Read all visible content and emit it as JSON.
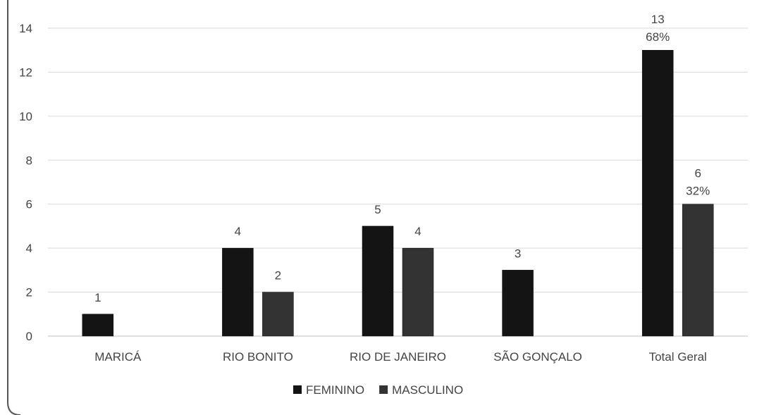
{
  "chart_data": {
    "type": "bar",
    "categories": [
      "MARICÁ",
      "RIO BONITO",
      "RIO DE JANEIRO",
      "SÃO GONÇALO",
      "Total Geral"
    ],
    "series": [
      {
        "name": "FEMININO",
        "values": [
          1,
          4,
          5,
          3,
          13
        ],
        "color": "#141414",
        "labels": [
          "1",
          "4",
          "5",
          "3",
          "13"
        ],
        "sublabels": [
          "",
          "",
          "",
          "",
          "68%"
        ]
      },
      {
        "name": "MASCULINO",
        "values": [
          null,
          2,
          4,
          null,
          6
        ],
        "color": "#333333",
        "labels": [
          "",
          "2",
          "4",
          "",
          "6"
        ],
        "sublabels": [
          "",
          "",
          "",
          "",
          "32%"
        ]
      }
    ],
    "y_ticks": [
      "0",
      "2",
      "4",
      "6",
      "8",
      "10",
      "12",
      "14"
    ],
    "ylim": [
      0,
      14
    ],
    "grid": true,
    "legend_position": "bottom-center",
    "gridline_color": "#d9d9d9",
    "frame_color": "#555555"
  }
}
